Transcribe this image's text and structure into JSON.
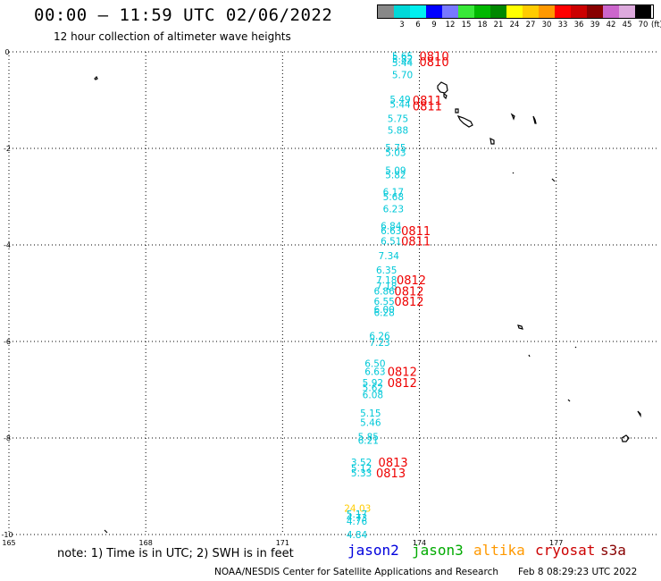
{
  "header": {
    "title": "00:00 – 11:59 UTC 02/06/2022",
    "subtitle": "12 hour collection of altimeter wave heights"
  },
  "legend": {
    "unit": "(ft)",
    "bins": [
      {
        "label": "",
        "color": "#888888"
      },
      {
        "label": "3",
        "color": "#00d8d8"
      },
      {
        "label": "6",
        "color": "#00f0f0"
      },
      {
        "label": "9",
        "color": "#0000ff"
      },
      {
        "label": "12",
        "color": "#7878ff"
      },
      {
        "label": "15",
        "color": "#38e838"
      },
      {
        "label": "18",
        "color": "#00b800"
      },
      {
        "label": "21",
        "color": "#008800"
      },
      {
        "label": "24",
        "color": "#ffff00"
      },
      {
        "label": "27",
        "color": "#ffcc00"
      },
      {
        "label": "30",
        "color": "#ff9900"
      },
      {
        "label": "33",
        "color": "#ff0000"
      },
      {
        "label": "36",
        "color": "#cc0000"
      },
      {
        "label": "39",
        "color": "#880000"
      },
      {
        "label": "42",
        "color": "#cc66cc"
      },
      {
        "label": "45",
        "color": "#ddaadd"
      },
      {
        "label": "70",
        "color": "#000000"
      }
    ]
  },
  "map": {
    "lon_ticks": [
      "165",
      "168",
      "171",
      "174",
      "177"
    ],
    "lat_ticks": [
      "0",
      "-2",
      "-4",
      "-6",
      "-8",
      "-10"
    ],
    "lon_range": [
      165,
      179.2
    ],
    "lat_range": [
      0,
      -10
    ],
    "grid": true
  },
  "wave_heights": [
    {
      "text": "5.65",
      "lon": 173.4,
      "lat": -0.08,
      "color": "#00c8d8"
    },
    {
      "text": "5.82",
      "lon": 173.4,
      "lat": -0.15,
      "color": "#00c8d8"
    },
    {
      "text": "5.44",
      "lon": 173.4,
      "lat": -0.22,
      "color": "#00c8d8"
    },
    {
      "text": "5.70",
      "lon": 173.4,
      "lat": -0.47,
      "color": "#00c8d8"
    },
    {
      "text": "5.49",
      "lon": 173.35,
      "lat": -0.98,
      "color": "#00c8d8"
    },
    {
      "text": "5.44",
      "lon": 173.35,
      "lat": -1.08,
      "color": "#00c8d8"
    },
    {
      "text": "5.75",
      "lon": 173.3,
      "lat": -1.38,
      "color": "#00c8d8"
    },
    {
      "text": "5.88",
      "lon": 173.3,
      "lat": -1.62,
      "color": "#00c8d8"
    },
    {
      "text": "5.75",
      "lon": 173.25,
      "lat": -1.98,
      "color": "#00c8d8"
    },
    {
      "text": "5.03",
      "lon": 173.25,
      "lat": -2.08,
      "color": "#00c8d8"
    },
    {
      "text": "5.09",
      "lon": 173.25,
      "lat": -2.45,
      "color": "#00c8d8"
    },
    {
      "text": "5.82",
      "lon": 173.25,
      "lat": -2.55,
      "color": "#00c8d8"
    },
    {
      "text": "6.17",
      "lon": 173.2,
      "lat": -2.9,
      "color": "#00c8d8"
    },
    {
      "text": "5.68",
      "lon": 173.2,
      "lat": -3.0,
      "color": "#00c8d8"
    },
    {
      "text": "6.23",
      "lon": 173.2,
      "lat": -3.25,
      "color": "#00c8d8"
    },
    {
      "text": "6.84",
      "lon": 173.15,
      "lat": -3.6,
      "color": "#00c8d8"
    },
    {
      "text": "6.63",
      "lon": 173.15,
      "lat": -3.7,
      "color": "#00c8d8"
    },
    {
      "text": "6.51",
      "lon": 173.15,
      "lat": -3.92,
      "color": "#00c8d8"
    },
    {
      "text": "7.34",
      "lon": 173.1,
      "lat": -4.22,
      "color": "#00c8d8"
    },
    {
      "text": "6.35",
      "lon": 173.05,
      "lat": -4.52,
      "color": "#00c8d8"
    },
    {
      "text": "7.18",
      "lon": 173.05,
      "lat": -4.72,
      "color": "#00c8d8"
    },
    {
      "text": "7.18",
      "lon": 173.05,
      "lat": -4.85,
      "color": "#00c8d8"
    },
    {
      "text": "6.86",
      "lon": 173.0,
      "lat": -4.95,
      "color": "#00c8d8"
    },
    {
      "text": "6.55",
      "lon": 173.0,
      "lat": -5.17,
      "color": "#00c8d8"
    },
    {
      "text": "6.00",
      "lon": 173.0,
      "lat": -5.33,
      "color": "#00c8d8"
    },
    {
      "text": "6.28",
      "lon": 173.0,
      "lat": -5.4,
      "color": "#00c8d8"
    },
    {
      "text": "6.26",
      "lon": 172.9,
      "lat": -5.88,
      "color": "#00c8d8"
    },
    {
      "text": "7.23",
      "lon": 172.9,
      "lat": -6.02,
      "color": "#00c8d8"
    },
    {
      "text": "6.50",
      "lon": 172.8,
      "lat": -6.45,
      "color": "#00c8d8"
    },
    {
      "text": "6.63",
      "lon": 172.8,
      "lat": -6.62,
      "color": "#00c8d8"
    },
    {
      "text": "5.92",
      "lon": 172.75,
      "lat": -6.85,
      "color": "#00c8d8"
    },
    {
      "text": "5.62",
      "lon": 172.75,
      "lat": -6.95,
      "color": "#00c8d8"
    },
    {
      "text": "6.08",
      "lon": 172.75,
      "lat": -7.1,
      "color": "#00c8d8"
    },
    {
      "text": "5.15",
      "lon": 172.7,
      "lat": -7.48,
      "color": "#00c8d8"
    },
    {
      "text": "5.46",
      "lon": 172.7,
      "lat": -7.68,
      "color": "#00c8d8"
    },
    {
      "text": "5.85",
      "lon": 172.65,
      "lat": -7.97,
      "color": "#00c8d8"
    },
    {
      "text": "6.21",
      "lon": 172.65,
      "lat": -8.05,
      "color": "#00c8d8"
    },
    {
      "text": "3.52",
      "lon": 172.5,
      "lat": -8.5,
      "color": "#00c8d8"
    },
    {
      "text": "5.12",
      "lon": 172.5,
      "lat": -8.62,
      "color": "#00c8d8"
    },
    {
      "text": "5.33",
      "lon": 172.5,
      "lat": -8.72,
      "color": "#00c8d8"
    },
    {
      "text": "24.03",
      "lon": 172.35,
      "lat": -9.45,
      "color": "#ffcc00"
    },
    {
      "text": "5.17",
      "lon": 172.4,
      "lat": -9.57,
      "color": "#00c8d8"
    },
    {
      "text": "4.73",
      "lon": 172.4,
      "lat": -9.65,
      "color": "#00c8d8"
    },
    {
      "text": "4.76",
      "lon": 172.4,
      "lat": -9.72,
      "color": "#00c8d8"
    },
    {
      "text": "4.84",
      "lon": 172.4,
      "lat": -10.0,
      "color": "#00c8d8"
    }
  ],
  "times": [
    {
      "text": "0810",
      "lon": 174.0,
      "lat": -0.08,
      "color": "#ee0000"
    },
    {
      "text": "0810",
      "lon": 174.0,
      "lat": -0.2,
      "color": "#ee0000"
    },
    {
      "text": "0811",
      "lon": 173.85,
      "lat": -1.0,
      "color": "#ee0000"
    },
    {
      "text": "0811",
      "lon": 173.85,
      "lat": -1.12,
      "color": "#ee0000"
    },
    {
      "text": "0811",
      "lon": 173.6,
      "lat": -3.7,
      "color": "#ee0000"
    },
    {
      "text": "0811",
      "lon": 173.6,
      "lat": -3.92,
      "color": "#ee0000"
    },
    {
      "text": "0812",
      "lon": 173.5,
      "lat": -4.72,
      "color": "#ee0000"
    },
    {
      "text": "0812",
      "lon": 173.45,
      "lat": -4.95,
      "color": "#ee0000"
    },
    {
      "text": "0812",
      "lon": 173.45,
      "lat": -5.17,
      "color": "#ee0000"
    },
    {
      "text": "0812",
      "lon": 173.3,
      "lat": -6.62,
      "color": "#ee0000"
    },
    {
      "text": "0812",
      "lon": 173.3,
      "lat": -6.85,
      "color": "#ee0000"
    },
    {
      "text": "0813",
      "lon": 173.1,
      "lat": -8.5,
      "color": "#ee0000"
    },
    {
      "text": "0813",
      "lon": 173.05,
      "lat": -8.72,
      "color": "#ee0000"
    }
  ],
  "footer": {
    "note": "note:  1) Time is in UTC;  2) SWH is in feet",
    "satellites": [
      {
        "name": "jason2",
        "color": "#0000dd"
      },
      {
        "name": "jason3",
        "color": "#00aa00"
      },
      {
        "name": "altika",
        "color": "#ff9900"
      },
      {
        "name": "cryosat",
        "color": "#cc0000"
      },
      {
        "name": "s3a",
        "color": "#880000"
      }
    ],
    "credit": "NOAA/NESDIS Center for Satellite Applications and Research",
    "generated": "Feb  8 08:29:23 UTC 2022"
  }
}
